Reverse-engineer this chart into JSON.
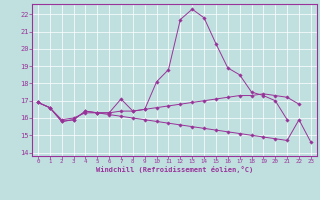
{
  "xlabel": "Windchill (Refroidissement éolien,°C)",
  "background_color": "#c0e0e0",
  "line_color": "#993399",
  "xlim": [
    -0.5,
    23.5
  ],
  "ylim": [
    13.8,
    22.6
  ],
  "yticks": [
    14,
    15,
    16,
    17,
    18,
    19,
    20,
    21,
    22
  ],
  "xticks": [
    0,
    1,
    2,
    3,
    4,
    5,
    6,
    7,
    8,
    9,
    10,
    11,
    12,
    13,
    14,
    15,
    16,
    17,
    18,
    19,
    20,
    21,
    22,
    23
  ],
  "series": [
    {
      "x": [
        0,
        1,
        2,
        3,
        4,
        5,
        6,
        7,
        8,
        9,
        10,
        11,
        12,
        13,
        14,
        15,
        16,
        17,
        18,
        19,
        20,
        21
      ],
      "y": [
        16.9,
        16.6,
        15.8,
        15.9,
        16.4,
        16.3,
        16.3,
        17.1,
        16.4,
        16.5,
        18.1,
        18.8,
        21.7,
        22.3,
        21.8,
        20.3,
        18.9,
        18.5,
        17.5,
        17.3,
        17.0,
        15.9
      ]
    },
    {
      "x": [
        0,
        1,
        2,
        3,
        4,
        5,
        6,
        7,
        8,
        9,
        10,
        11,
        12,
        13,
        14,
        15,
        16,
        17,
        18,
        19,
        20,
        21,
        22
      ],
      "y": [
        16.9,
        16.6,
        15.9,
        16.0,
        16.3,
        16.3,
        16.3,
        16.4,
        16.4,
        16.5,
        16.6,
        16.7,
        16.8,
        16.9,
        17.0,
        17.1,
        17.2,
        17.3,
        17.3,
        17.4,
        17.3,
        17.2,
        16.8
      ]
    },
    {
      "x": [
        0,
        1,
        2,
        3,
        4,
        5,
        6,
        7,
        8,
        9,
        10,
        11,
        12,
        13,
        14,
        15,
        16,
        17,
        18,
        19,
        20,
        21,
        22,
        23
      ],
      "y": [
        16.9,
        16.6,
        15.8,
        15.9,
        16.4,
        16.3,
        16.2,
        16.1,
        16.0,
        15.9,
        15.8,
        15.7,
        15.6,
        15.5,
        15.4,
        15.3,
        15.2,
        15.1,
        15.0,
        14.9,
        14.8,
        14.7,
        15.9,
        14.6
      ]
    }
  ]
}
